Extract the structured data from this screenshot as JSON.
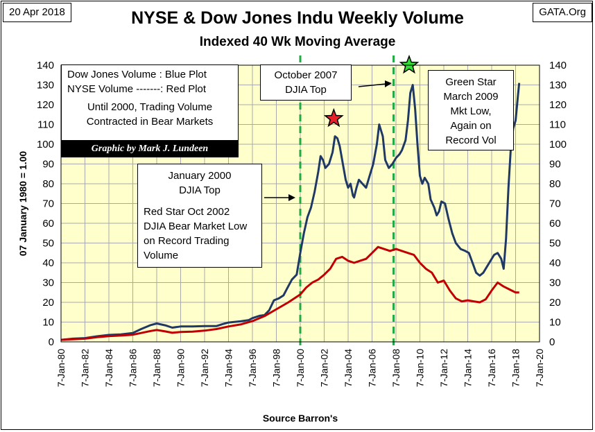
{
  "header": {
    "date": "20 Apr 2018",
    "source": "GATA.Org",
    "title": "NYSE & Dow Jones Indu Weekly Volume",
    "subtitle": "Indexed 40 Wk Moving Average"
  },
  "annotations": {
    "legend_box": {
      "line1": "Dow Jones Volume : Blue Plot",
      "line2": "NYSE Volume -------: Red Plot",
      "line3": "Until 2000, Trading Volume",
      "line4": "Contracted in Bear Markets"
    },
    "credit": "Graphic by Mark J. Lundeen",
    "jan2000": {
      "line1": "January 2000",
      "line2": "DJIA Top",
      "line3": "Red Star Oct 2002",
      "line4": "DJIA Bear Market Low",
      "line5": "on Record Trading",
      "line6": "Volume"
    },
    "oct2007": {
      "line1": "October 2007",
      "line2": "DJIA Top"
    },
    "green_star": {
      "line1": "Green Star",
      "line2": "March 2009",
      "line3": "Mkt Low,",
      "line4": "Again on",
      "line5": "Record Vol"
    }
  },
  "chart_data": {
    "type": "line",
    "ylabel": "07 January 1980 = 1.00",
    "xlabel": "Source Barron's",
    "ylim": [
      0,
      140
    ],
    "yticks": [
      0,
      10,
      20,
      30,
      40,
      50,
      60,
      70,
      80,
      90,
      100,
      110,
      120,
      130,
      140
    ],
    "xlim": [
      1980,
      2020
    ],
    "xticks": [
      {
        "year": 1980,
        "label": "7-Jan-80"
      },
      {
        "year": 1982,
        "label": "7-Jan-82"
      },
      {
        "year": 1984,
        "label": "7-Jan-84"
      },
      {
        "year": 1986,
        "label": "7-Jan-86"
      },
      {
        "year": 1988,
        "label": "7-Jan-88"
      },
      {
        "year": 1990,
        "label": "7-Jan-90"
      },
      {
        "year": 1992,
        "label": "7-Jan-92"
      },
      {
        "year": 1994,
        "label": "7-Jan-94"
      },
      {
        "year": 1996,
        "label": "7-Jan-96"
      },
      {
        "year": 1998,
        "label": "7-Jan-98"
      },
      {
        "year": 2000,
        "label": "7-Jan-00"
      },
      {
        "year": 2002,
        "label": "7-Jan-02"
      },
      {
        "year": 2004,
        "label": "7-Jan-04"
      },
      {
        "year": 2006,
        "label": "7-Jan-06"
      },
      {
        "year": 2008,
        "label": "7-Jan-08"
      },
      {
        "year": 2010,
        "label": "7-Jan-10"
      },
      {
        "year": 2012,
        "label": "7-Jan-12"
      },
      {
        "year": 2014,
        "label": "7-Jan-14"
      },
      {
        "year": 2016,
        "label": "7-Jan-16"
      },
      {
        "year": 2018,
        "label": "7-Jan-18"
      },
      {
        "year": 2020,
        "label": "7-Jan-20"
      }
    ],
    "background_color": "#ffffcc",
    "grid": true,
    "series": [
      {
        "name": "Dow Jones Volume",
        "color": "#1f3864",
        "points": [
          [
            1980.0,
            1.0
          ],
          [
            1981.0,
            1.6
          ],
          [
            1982.0,
            1.9
          ],
          [
            1983.0,
            2.8
          ],
          [
            1984.0,
            3.5
          ],
          [
            1985.0,
            3.8
          ],
          [
            1986.0,
            4.5
          ],
          [
            1986.7,
            6.5
          ],
          [
            1987.5,
            8.5
          ],
          [
            1988.0,
            9.3
          ],
          [
            1988.7,
            8.4
          ],
          [
            1989.3,
            7.2
          ],
          [
            1990.0,
            7.8
          ],
          [
            1991.0,
            7.8
          ],
          [
            1992.0,
            8.0
          ],
          [
            1993.0,
            8.0
          ],
          [
            1993.5,
            9.0
          ],
          [
            1994.0,
            9.8
          ],
          [
            1995.0,
            10.4
          ],
          [
            1995.7,
            11.0
          ],
          [
            1996.0,
            12.0
          ],
          [
            1996.6,
            13.2
          ],
          [
            1997.0,
            13.5
          ],
          [
            1997.4,
            16.0
          ],
          [
            1997.8,
            21.0
          ],
          [
            1998.2,
            22.0
          ],
          [
            1998.6,
            23.5
          ],
          [
            1998.9,
            27.0
          ],
          [
            1999.3,
            31.5
          ],
          [
            1999.7,
            34.0
          ],
          [
            2000.0,
            45.0
          ],
          [
            2000.3,
            55.0
          ],
          [
            2000.6,
            63.0
          ],
          [
            2000.9,
            68.0
          ],
          [
            2001.2,
            76.0
          ],
          [
            2001.5,
            86.0
          ],
          [
            2001.7,
            94.0
          ],
          [
            2001.9,
            92.0
          ],
          [
            2002.1,
            88.0
          ],
          [
            2002.4,
            90.0
          ],
          [
            2002.7,
            96.0
          ],
          [
            2002.9,
            104.0
          ],
          [
            2003.1,
            103.0
          ],
          [
            2003.3,
            99.0
          ],
          [
            2003.5,
            92.0
          ],
          [
            2003.8,
            82.0
          ],
          [
            2004.0,
            78.0
          ],
          [
            2004.2,
            80.0
          ],
          [
            2004.4,
            74.0
          ],
          [
            2004.5,
            73.0
          ],
          [
            2004.7,
            78.0
          ],
          [
            2004.9,
            82.0
          ],
          [
            2005.2,
            80.0
          ],
          [
            2005.5,
            78.0
          ],
          [
            2005.8,
            84.0
          ],
          [
            2006.1,
            90.0
          ],
          [
            2006.4,
            100.0
          ],
          [
            2006.6,
            110.0
          ],
          [
            2006.9,
            104.0
          ],
          [
            2007.1,
            92.0
          ],
          [
            2007.4,
            88.0
          ],
          [
            2007.7,
            90.0
          ],
          [
            2008.0,
            93.0
          ],
          [
            2008.3,
            95.0
          ],
          [
            2008.5,
            97.0
          ],
          [
            2008.8,
            102.0
          ],
          [
            2009.0,
            112.0
          ],
          [
            2009.2,
            126.0
          ],
          [
            2009.4,
            130.0
          ],
          [
            2009.6,
            118.0
          ],
          [
            2009.8,
            100.0
          ],
          [
            2010.0,
            84.0
          ],
          [
            2010.2,
            80.0
          ],
          [
            2010.4,
            83.0
          ],
          [
            2010.7,
            80.0
          ],
          [
            2010.9,
            72.0
          ],
          [
            2011.2,
            68.0
          ],
          [
            2011.4,
            64.0
          ],
          [
            2011.6,
            66.0
          ],
          [
            2011.8,
            71.0
          ],
          [
            2012.1,
            70.0
          ],
          [
            2012.4,
            62.0
          ],
          [
            2012.7,
            55.0
          ],
          [
            2013.0,
            50.0
          ],
          [
            2013.4,
            47.0
          ],
          [
            2013.8,
            46.0
          ],
          [
            2014.1,
            45.0
          ],
          [
            2014.4,
            40.0
          ],
          [
            2014.7,
            35.0
          ],
          [
            2015.0,
            33.5
          ],
          [
            2015.3,
            35.0
          ],
          [
            2015.6,
            38.0
          ],
          [
            2015.9,
            41.0
          ],
          [
            2016.2,
            44.0
          ],
          [
            2016.5,
            45.0
          ],
          [
            2016.8,
            42.0
          ],
          [
            2017.0,
            37.0
          ],
          [
            2017.2,
            52.0
          ],
          [
            2017.4,
            78.0
          ],
          [
            2017.6,
            98.0
          ],
          [
            2017.8,
            108.0
          ],
          [
            2018.0,
            112.0
          ],
          [
            2018.2,
            125.0
          ],
          [
            2018.3,
            131.0
          ]
        ]
      },
      {
        "name": "NYSE Volume",
        "color": "#c00000",
        "points": [
          [
            1980.0,
            1.0
          ],
          [
            1981.0,
            1.3
          ],
          [
            1982.0,
            1.6
          ],
          [
            1983.0,
            2.4
          ],
          [
            1984.0,
            2.9
          ],
          [
            1985.0,
            3.2
          ],
          [
            1986.0,
            3.6
          ],
          [
            1986.7,
            4.5
          ],
          [
            1987.5,
            5.5
          ],
          [
            1988.0,
            6.0
          ],
          [
            1988.7,
            5.3
          ],
          [
            1989.3,
            4.6
          ],
          [
            1990.0,
            5.0
          ],
          [
            1991.0,
            5.2
          ],
          [
            1992.0,
            5.7
          ],
          [
            1993.0,
            6.5
          ],
          [
            1994.0,
            7.8
          ],
          [
            1995.0,
            8.8
          ],
          [
            1996.0,
            10.5
          ],
          [
            1997.0,
            13.0
          ],
          [
            1998.0,
            16.5
          ],
          [
            1999.0,
            20.0
          ],
          [
            2000.0,
            24.0
          ],
          [
            2000.5,
            27.5
          ],
          [
            2001.0,
            30.0
          ],
          [
            2001.5,
            31.5
          ],
          [
            2002.0,
            34.0
          ],
          [
            2002.5,
            37.0
          ],
          [
            2003.0,
            42.0
          ],
          [
            2003.5,
            43.0
          ],
          [
            2004.0,
            41.0
          ],
          [
            2004.5,
            40.0
          ],
          [
            2005.0,
            41.0
          ],
          [
            2005.5,
            42.0
          ],
          [
            2006.0,
            45.0
          ],
          [
            2006.5,
            48.0
          ],
          [
            2007.0,
            47.0
          ],
          [
            2007.5,
            46.0
          ],
          [
            2008.0,
            47.0
          ],
          [
            2008.5,
            46.0
          ],
          [
            2009.0,
            45.0
          ],
          [
            2009.5,
            44.0
          ],
          [
            2010.0,
            40.0
          ],
          [
            2010.5,
            37.0
          ],
          [
            2011.0,
            35.0
          ],
          [
            2011.5,
            30.0
          ],
          [
            2012.0,
            31.0
          ],
          [
            2012.5,
            26.0
          ],
          [
            2013.0,
            22.0
          ],
          [
            2013.5,
            20.5
          ],
          [
            2014.0,
            21.0
          ],
          [
            2014.5,
            20.5
          ],
          [
            2015.0,
            20.0
          ],
          [
            2015.5,
            21.5
          ],
          [
            2016.0,
            26.0
          ],
          [
            2016.5,
            30.0
          ],
          [
            2017.0,
            28.0
          ],
          [
            2017.5,
            26.5
          ],
          [
            2018.0,
            25.0
          ],
          [
            2018.3,
            25.0
          ]
        ]
      }
    ],
    "vertical_markers": [
      {
        "year": 2000.0,
        "color": "#22aa44"
      },
      {
        "year": 2007.8,
        "color": "#22aa44"
      }
    ],
    "stars": [
      {
        "year": 2002.8,
        "value": 113,
        "color": "#e8202a"
      },
      {
        "year": 2009.1,
        "value": 140,
        "color": "#33dd33"
      }
    ]
  }
}
